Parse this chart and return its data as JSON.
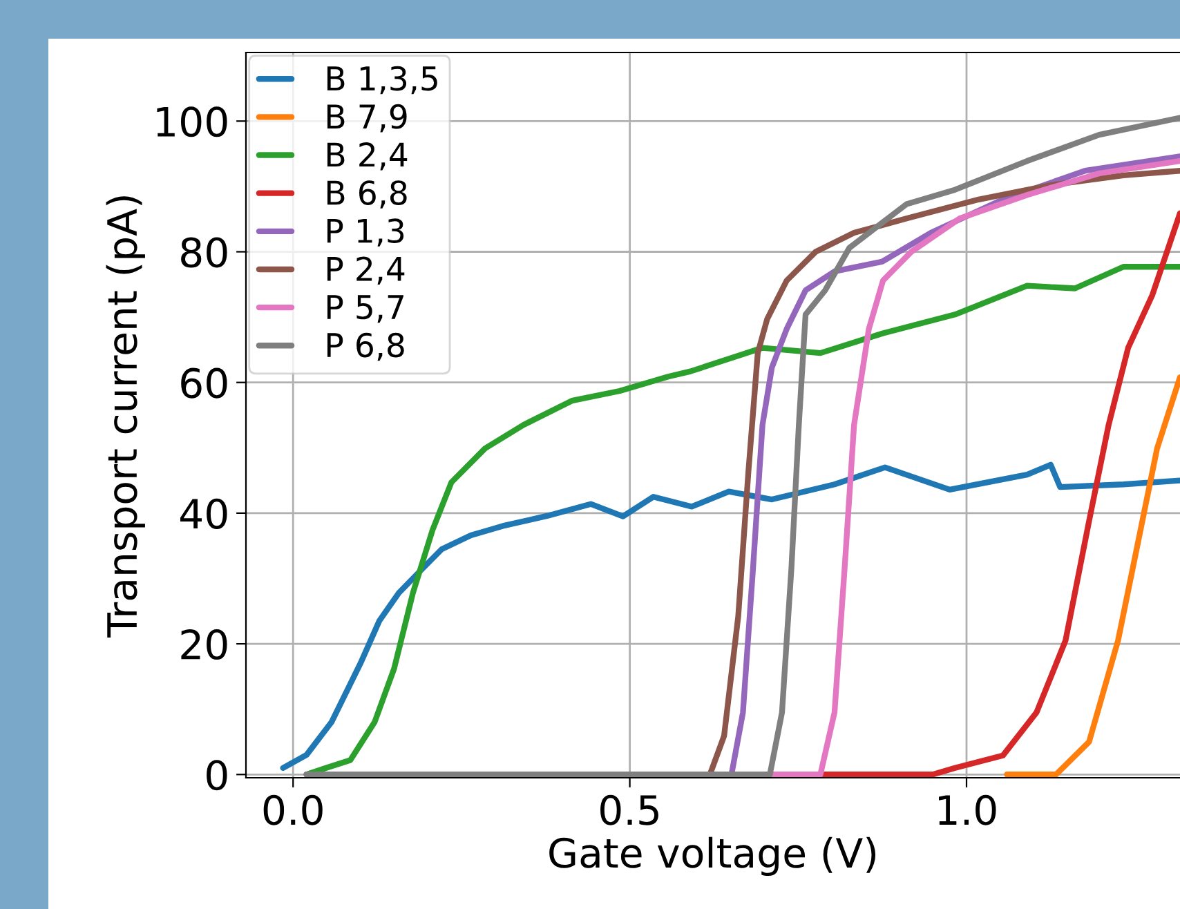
{
  "chart_data": {
    "type": "line",
    "xlabel": "Gate voltage (V)",
    "ylabel": "Transport current (pA)",
    "xlim": [
      -0.07,
      1.317
    ],
    "ylim": [
      -0.5,
      110.5
    ],
    "xticks": [
      {
        "value": 0,
        "label": "0.0"
      },
      0.5,
      {
        "value": 1,
        "label": "1.0"
      }
    ],
    "yticks": [
      0,
      20,
      40,
      60,
      80,
      100
    ],
    "grid": true,
    "legend": "top left",
    "line_style": "solid",
    "marker": "none",
    "series": [
      {
        "name": "B 1,3,5",
        "color": "#1f77b4",
        "x": [
          -0.015,
          0.02,
          0.057,
          0.1,
          0.128,
          0.157,
          0.193,
          0.221,
          0.264,
          0.314,
          0.378,
          0.442,
          0.49,
          0.535,
          0.592,
          0.647,
          0.711,
          0.804,
          0.879,
          0.975,
          1.09,
          1.125,
          1.139,
          1.233,
          1.317
        ],
        "values": [
          1,
          3,
          8,
          17,
          23.5,
          27.8,
          31.6,
          34.5,
          36.6,
          38.1,
          39.6,
          41.4,
          39.5,
          42.5,
          41,
          43.3,
          42.1,
          44.4,
          47,
          43.6,
          45.9,
          47.4,
          44,
          44.4,
          45
        ]
      },
      {
        "name": "B 7,9",
        "color": "#ff7f0e",
        "x": [
          1.06,
          1.133,
          1.182,
          1.225,
          1.254,
          1.283,
          1.317
        ],
        "values": [
          0,
          0,
          5,
          20.5,
          35.2,
          49.9,
          60.8
        ]
      },
      {
        "name": "B 2,4",
        "color": "#2ca02c",
        "x": [
          0.02,
          0.049,
          0.085,
          0.121,
          0.15,
          0.178,
          0.207,
          0.235,
          0.285,
          0.342,
          0.414,
          0.485,
          0.557,
          0.59,
          0.697,
          0.783,
          0.875,
          0.983,
          1.09,
          1.161,
          1.233,
          1.317
        ],
        "values": [
          0,
          1,
          2.2,
          8,
          16.2,
          27.8,
          37.4,
          44.7,
          49.9,
          53.5,
          57.2,
          58.7,
          60.9,
          61.7,
          65.3,
          64.5,
          67.5,
          70.4,
          74.8,
          74.4,
          77.7,
          77.7
        ]
      },
      {
        "name": "B 6,8",
        "color": "#d62728",
        "x": [
          0.02,
          0.95,
          0.983,
          1.054,
          1.104,
          1.147,
          1.182,
          1.211,
          1.24,
          1.276,
          1.317
        ],
        "values": [
          0,
          0,
          1,
          2.9,
          9.5,
          20.5,
          38.8,
          53.5,
          65.3,
          73.4,
          85.9
        ]
      },
      {
        "name": "P 1,3",
        "color": "#9467bd",
        "x": [
          0.02,
          0.651,
          0.668,
          0.683,
          0.697,
          0.711,
          0.733,
          0.761,
          0.804,
          0.875,
          0.947,
          1.054,
          1.176,
          1.317
        ],
        "values": [
          0,
          0,
          9.5,
          31.6,
          53.5,
          62.3,
          68.2,
          74.1,
          77,
          78.5,
          82.9,
          88,
          92.4,
          94.6
        ]
      },
      {
        "name": "P 2,4",
        "color": "#8c564b",
        "x": [
          0.02,
          0.619,
          0.64,
          0.661,
          0.676,
          0.69,
          0.704,
          0.733,
          0.776,
          0.833,
          0.911,
          1.018,
          1.125,
          1.233,
          1.317
        ],
        "values": [
          0,
          0,
          5.9,
          24.2,
          46.2,
          64.5,
          69.7,
          75.6,
          80,
          82.9,
          85.1,
          88,
          90.2,
          91.7,
          92.4
        ]
      },
      {
        "name": "P 5,7",
        "color": "#e377c2",
        "x": [
          0.02,
          0.783,
          0.804,
          0.819,
          0.833,
          0.855,
          0.876,
          0.918,
          0.99,
          1.09,
          1.197,
          1.317
        ],
        "values": [
          0,
          0,
          9.5,
          31.6,
          53.5,
          68.2,
          75.6,
          80,
          85.1,
          88.7,
          92,
          93.9
        ]
      },
      {
        "name": "P 6,8",
        "color": "#7f7f7f",
        "x": [
          0.02,
          0.708,
          0.726,
          0.74,
          0.751,
          0.761,
          0.79,
          0.826,
          0.911,
          0.983,
          1.09,
          1.197,
          1.317
        ],
        "values": [
          0,
          0,
          9.5,
          31.6,
          53.5,
          70.4,
          74.1,
          80.6,
          87.3,
          89.5,
          93.9,
          97.9,
          100.5
        ]
      }
    ]
  }
}
